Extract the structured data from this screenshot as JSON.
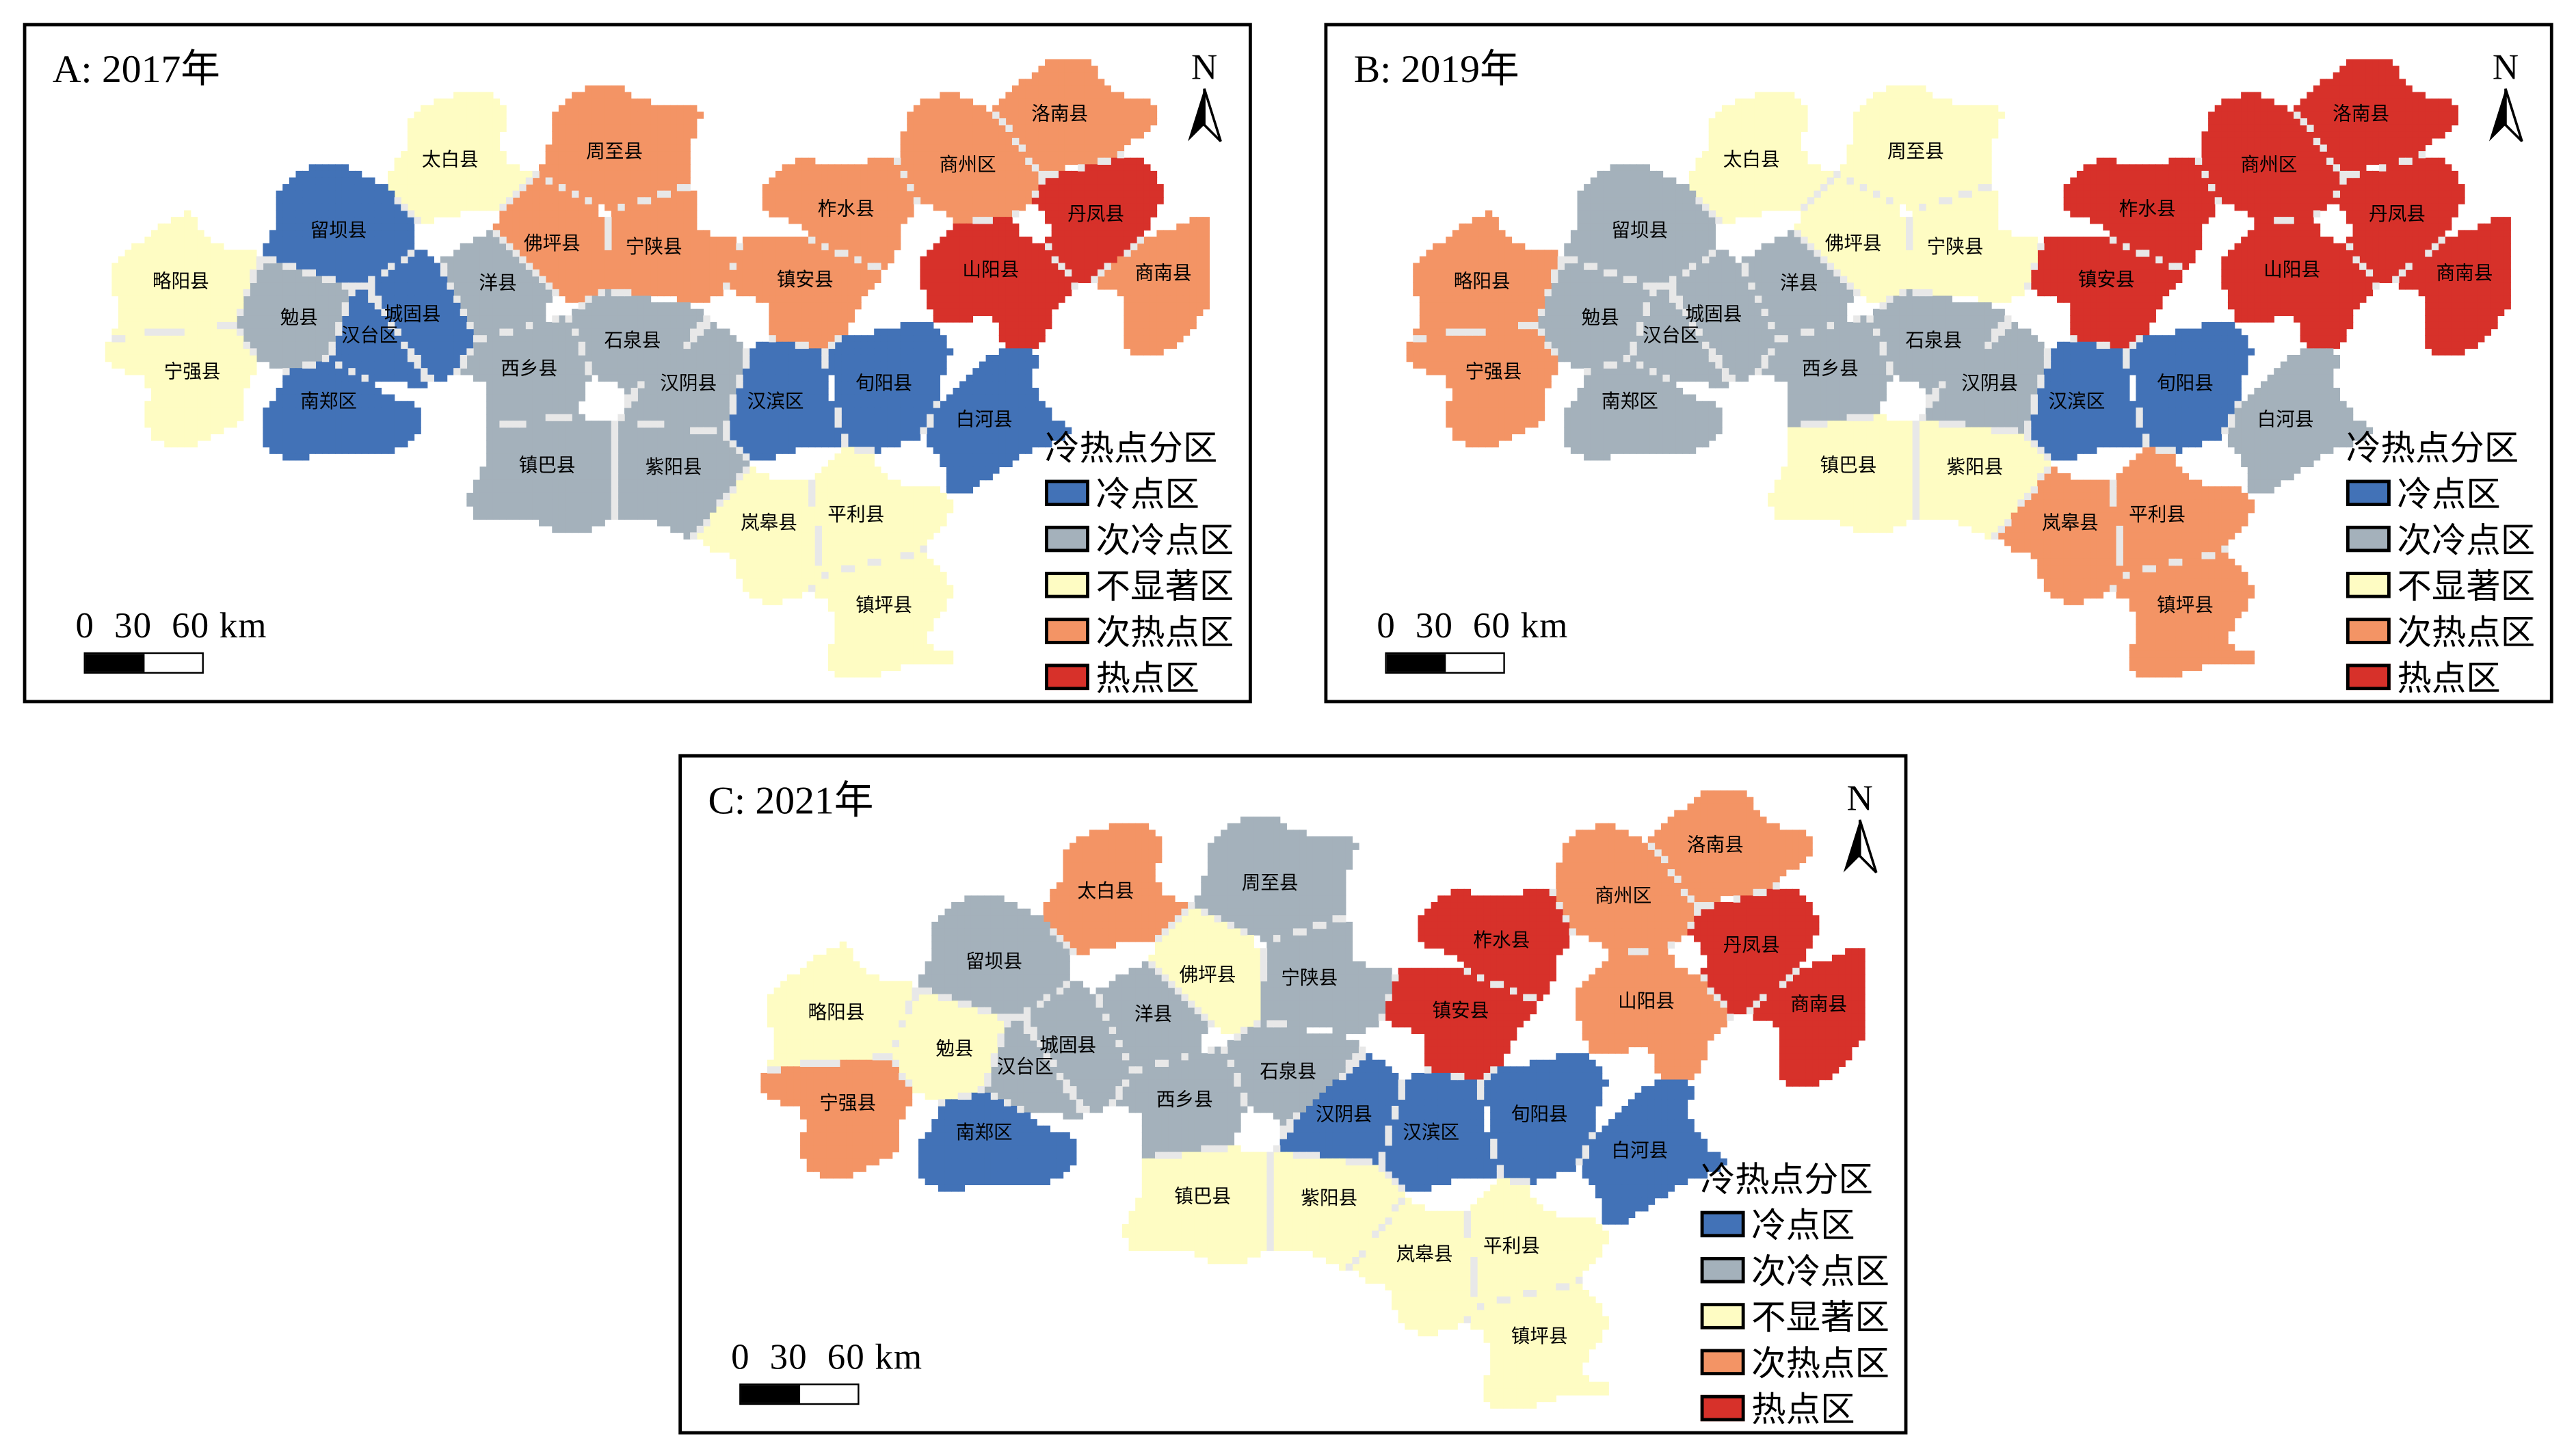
{
  "colors": {
    "冷点区": "#4272b7",
    "次冷点区": "#a4b1bb",
    "不显著区": "#fefcc3",
    "次热点区": "#f39465",
    "热点区": "#d7312a"
  },
  "legend": {
    "title": "冷热点分区",
    "items": [
      "冷点区",
      "次冷点区",
      "不显著区",
      "次热点区",
      "热点区"
    ]
  },
  "scale_label": "0  30  60 km",
  "north_label": "N",
  "panels": [
    {
      "title": "A: 2017年",
      "classes": {
        "太白县": "不显著区",
        "周至县": "次热点区",
        "洛南县": "次热点区",
        "商州区": "次热点区",
        "丹凤县": "热点区",
        "商南县": "次热点区",
        "山阳县": "热点区",
        "柞水县": "次热点区",
        "镇安县": "次热点区",
        "宁陕县": "次热点区",
        "佛坪县": "次热点区",
        "洋县": "次冷点区",
        "留坝县": "冷点区",
        "城固县": "冷点区",
        "汉台区": "冷点区",
        "勉县": "次冷点区",
        "略阳县": "不显著区",
        "宁强县": "不显著区",
        "南郑区": "冷点区",
        "西乡县": "次冷点区",
        "石泉县": "次冷点区",
        "汉阴县": "次冷点区",
        "汉滨区": "冷点区",
        "旬阳县": "冷点区",
        "白河县": "冷点区",
        "镇巴县": "次冷点区",
        "紫阳县": "次冷点区",
        "岚皋县": "不显著区",
        "平利县": "不显著区",
        "镇坪县": "不显著区"
      }
    },
    {
      "title": "B: 2019年",
      "classes": {
        "太白县": "不显著区",
        "周至县": "不显著区",
        "洛南县": "热点区",
        "商州区": "热点区",
        "丹凤县": "热点区",
        "商南县": "热点区",
        "山阳县": "热点区",
        "柞水县": "热点区",
        "镇安县": "热点区",
        "宁陕县": "不显著区",
        "佛坪县": "不显著区",
        "洋县": "次冷点区",
        "留坝县": "次冷点区",
        "城固县": "次冷点区",
        "汉台区": "次冷点区",
        "勉县": "次冷点区",
        "略阳县": "次热点区",
        "宁强县": "次热点区",
        "南郑区": "次冷点区",
        "西乡县": "次冷点区",
        "石泉县": "次冷点区",
        "汉阴县": "次冷点区",
        "汉滨区": "冷点区",
        "旬阳县": "冷点区",
        "白河县": "次冷点区",
        "镇巴县": "不显著区",
        "紫阳县": "不显著区",
        "岚皋县": "次热点区",
        "平利县": "次热点区",
        "镇坪县": "次热点区"
      }
    },
    {
      "title": "C: 2021年",
      "classes": {
        "太白县": "次热点区",
        "周至县": "次冷点区",
        "洛南县": "次热点区",
        "商州区": "次热点区",
        "丹凤县": "热点区",
        "商南县": "热点区",
        "山阳县": "次热点区",
        "柞水县": "热点区",
        "镇安县": "热点区",
        "宁陕县": "次冷点区",
        "佛坪县": "不显著区",
        "洋县": "次冷点区",
        "留坝县": "次冷点区",
        "城固县": "次冷点区",
        "汉台区": "次冷点区",
        "勉县": "不显著区",
        "略阳县": "不显著区",
        "宁强县": "次热点区",
        "南郑区": "冷点区",
        "西乡县": "次冷点区",
        "石泉县": "次冷点区",
        "汉阴县": "冷点区",
        "汉滨区": "冷点区",
        "旬阳县": "冷点区",
        "白河县": "冷点区",
        "镇巴县": "不显著区",
        "紫阳县": "不显著区",
        "岚皋县": "不显著区",
        "平利县": "不显著区",
        "镇坪县": "不显著区"
      }
    }
  ]
}
